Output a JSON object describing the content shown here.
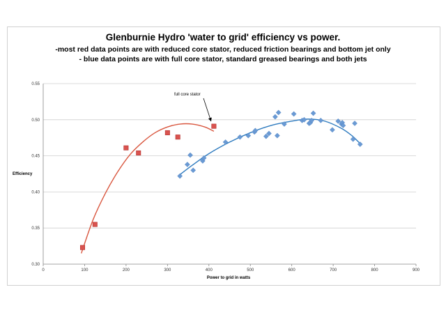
{
  "chart_data": {
    "type": "scatter",
    "title": "Glenburnie Hydro 'water to grid' efficiency vs power.",
    "subtitle_lines": [
      "-most red data points are with reduced core stator, reduced friction bearings and bottom jet only",
      "- blue data points are with full core stator, standard greased bearings and both jets"
    ],
    "xlabel": "Power to grid in watts",
    "ylabel": "Efficiency",
    "xlim": [
      0,
      900
    ],
    "ylim": [
      0.3,
      0.55
    ],
    "x_ticks": [
      "0",
      "100",
      "200",
      "300",
      "400",
      "500",
      "600",
      "700",
      "800",
      "900"
    ],
    "y_ticks": [
      "0.30",
      "0.35",
      "0.40",
      "0.45",
      "0.50",
      "0.55"
    ],
    "grid": "horizontal",
    "annotation": {
      "text": "full core stator",
      "points_to": [
        412,
        0.491
      ]
    },
    "series": [
      {
        "name": "red",
        "marker": "square",
        "color": "#d9534f",
        "trend_color": "#d9573f",
        "points": [
          [
            95,
            0.323
          ],
          [
            125,
            0.355
          ],
          [
            200,
            0.461
          ],
          [
            230,
            0.454
          ],
          [
            300,
            0.482
          ],
          [
            325,
            0.476
          ],
          [
            412,
            0.491
          ]
        ],
        "trend": [
          [
            92,
            0.315
          ],
          [
            120,
            0.361
          ],
          [
            150,
            0.398
          ],
          [
            180,
            0.428
          ],
          [
            210,
            0.452
          ],
          [
            240,
            0.469
          ],
          [
            270,
            0.482
          ],
          [
            300,
            0.49
          ],
          [
            330,
            0.494
          ],
          [
            360,
            0.494
          ],
          [
            390,
            0.49
          ],
          [
            412,
            0.484
          ]
        ]
      },
      {
        "name": "blue",
        "marker": "diamond",
        "color": "#6a9ad4",
        "trend_color": "#2e7bbf",
        "points": [
          [
            330,
            0.422
          ],
          [
            348,
            0.438
          ],
          [
            355,
            0.451
          ],
          [
            362,
            0.43
          ],
          [
            385,
            0.443
          ],
          [
            388,
            0.447
          ],
          [
            440,
            0.469
          ],
          [
            475,
            0.476
          ],
          [
            495,
            0.478
          ],
          [
            510,
            0.483
          ],
          [
            512,
            0.485
          ],
          [
            538,
            0.477
          ],
          [
            545,
            0.481
          ],
          [
            560,
            0.504
          ],
          [
            565,
            0.478
          ],
          [
            568,
            0.51
          ],
          [
            582,
            0.494
          ],
          [
            605,
            0.508
          ],
          [
            625,
            0.499
          ],
          [
            630,
            0.5
          ],
          [
            642,
            0.495
          ],
          [
            645,
            0.496
          ],
          [
            648,
            0.499
          ],
          [
            652,
            0.509
          ],
          [
            670,
            0.499
          ],
          [
            698,
            0.486
          ],
          [
            712,
            0.498
          ],
          [
            720,
            0.494
          ],
          [
            722,
            0.496
          ],
          [
            724,
            0.492
          ],
          [
            748,
            0.473
          ],
          [
            752,
            0.495
          ],
          [
            765,
            0.466
          ]
        ],
        "trend": [
          [
            330,
            0.424
          ],
          [
            360,
            0.437
          ],
          [
            400,
            0.453
          ],
          [
            450,
            0.469
          ],
          [
            500,
            0.482
          ],
          [
            550,
            0.492
          ],
          [
            600,
            0.498
          ],
          [
            640,
            0.501
          ],
          [
            680,
            0.498
          ],
          [
            720,
            0.488
          ],
          [
            745,
            0.478
          ],
          [
            765,
            0.467
          ]
        ]
      }
    ]
  }
}
